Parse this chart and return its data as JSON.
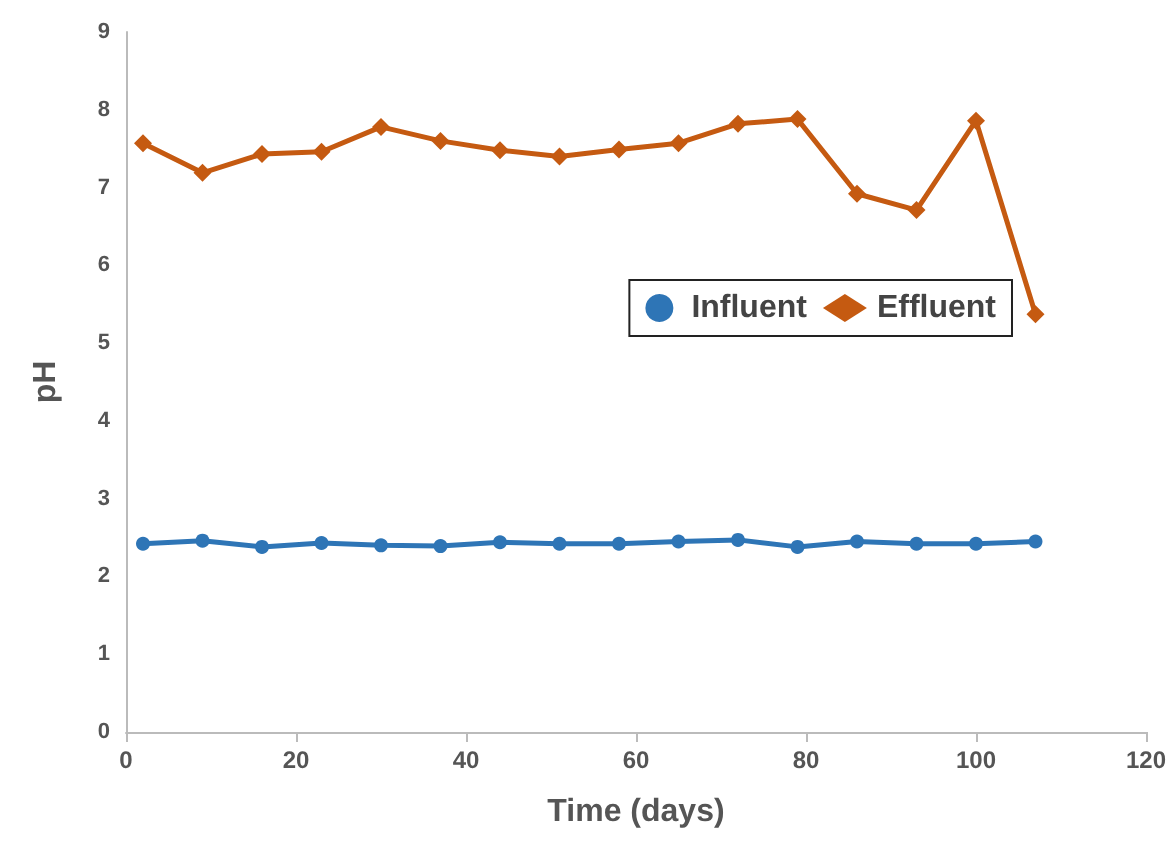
{
  "chart_data": {
    "type": "line",
    "xlabel": "Time (days)",
    "ylabel": "pH",
    "x": [
      2,
      9,
      16,
      23,
      30,
      37,
      44,
      51,
      58,
      65,
      72,
      79,
      86,
      93,
      100,
      107
    ],
    "series": [
      {
        "name": "Influent",
        "color": "#2e75b6",
        "marker": "circle",
        "values": [
          2.42,
          2.46,
          2.38,
          2.43,
          2.4,
          2.39,
          2.44,
          2.42,
          2.42,
          2.45,
          2.47,
          2.38,
          2.45,
          2.42,
          2.42,
          2.45
        ]
      },
      {
        "name": "Effluent",
        "color": "#c55a11",
        "marker": "diamond",
        "values": [
          7.57,
          7.19,
          7.43,
          7.46,
          7.78,
          7.6,
          7.48,
          7.4,
          7.49,
          7.57,
          7.82,
          7.88,
          6.92,
          6.71,
          7.86,
          5.37
        ]
      }
    ],
    "xlim": [
      0,
      120
    ],
    "xticks": [
      0,
      20,
      40,
      60,
      80,
      100,
      120
    ],
    "ylim": [
      0,
      9
    ],
    "yticks": [
      0,
      1,
      2,
      3,
      4,
      5,
      6,
      7,
      8,
      9
    ],
    "grid": false,
    "legend": "right",
    "line_style": "solid"
  }
}
